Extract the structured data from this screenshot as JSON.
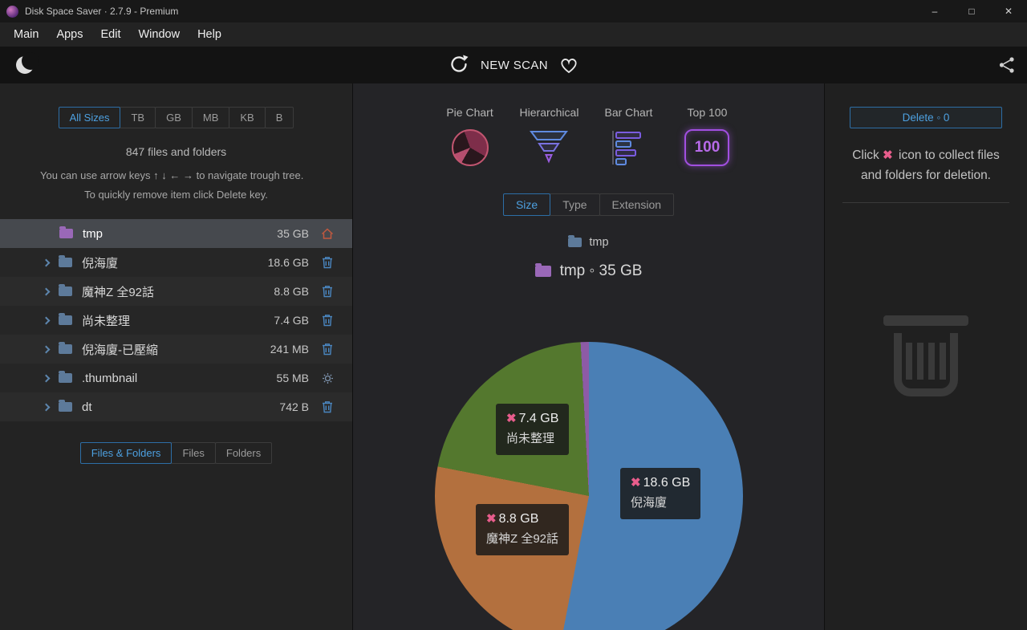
{
  "window": {
    "app_title": "Disk Space Saver · 2.7.9 - Premium",
    "controls": {
      "minimize": "–",
      "maximize": "□",
      "close": "✕"
    }
  },
  "menu": {
    "items": [
      "Main",
      "Apps",
      "Edit",
      "Window",
      "Help"
    ]
  },
  "toolbar": {
    "new_scan_label": "NEW SCAN"
  },
  "left_panel": {
    "size_tabs": [
      {
        "label": "All Sizes",
        "active": true
      },
      {
        "label": "TB",
        "active": false
      },
      {
        "label": "GB",
        "active": false
      },
      {
        "label": "MB",
        "active": false
      },
      {
        "label": "KB",
        "active": false
      },
      {
        "label": "B",
        "active": false
      }
    ],
    "summary": "847 files and folders",
    "hint_line1": "You can use arrow keys ↑ ↓ ← → to navigate trough tree.",
    "hint_line2": "To quickly remove item click Delete key.",
    "tree": [
      {
        "name": "tmp",
        "size": "35 GB",
        "action_icon": "home",
        "folder_color": "purple",
        "root": true,
        "selected": true
      },
      {
        "name": "倪海廈",
        "size": "18.6 GB",
        "action_icon": "trash",
        "folder_color": "blue"
      },
      {
        "name": "魔神Z 全92話",
        "size": "8.8 GB",
        "action_icon": "trash",
        "folder_color": "blue"
      },
      {
        "name": "尚未整理",
        "size": "7.4 GB",
        "action_icon": "trash",
        "folder_color": "blue"
      },
      {
        "name": "倪海廈-已壓縮",
        "size": "241 MB",
        "action_icon": "trash",
        "folder_color": "blue"
      },
      {
        "name": ".thumbnail",
        "size": "55 MB",
        "action_icon": "gear",
        "folder_color": "blue"
      },
      {
        "name": "dt",
        "size": "742 B",
        "action_icon": "trash",
        "folder_color": "blue"
      }
    ],
    "filter_tabs": [
      {
        "label": "Files & Folders",
        "active": true
      },
      {
        "label": "Files",
        "active": false
      },
      {
        "label": "Folders",
        "active": false
      }
    ]
  },
  "center_panel": {
    "views": [
      "Pie Chart",
      "Hierarchical",
      "Bar Chart",
      "Top 100"
    ],
    "top100_badge": "100",
    "tabs": [
      {
        "label": "Size",
        "active": true
      },
      {
        "label": "Type",
        "active": false
      },
      {
        "label": "Extension",
        "active": false
      }
    ],
    "breadcrumb": "tmp",
    "header": "tmp ◦ 35 GB",
    "x_glyph": "✖"
  },
  "right_panel": {
    "delete_button": "Delete ◦ 0",
    "x_glyph": "✖",
    "hint_before": "Click",
    "hint_after": "icon to collect files and folders for deletion."
  },
  "chart_data": {
    "type": "pie",
    "title": "tmp ◦ 35 GB",
    "total_label": "35 GB",
    "legend_position": "none",
    "slices": [
      {
        "label": "倪海廈",
        "display": "18.6 GB",
        "value_gb": 18.6,
        "color": "#4a7fb5"
      },
      {
        "label": "魔神Z 全92話",
        "display": "8.8 GB",
        "value_gb": 8.8,
        "color": "#b3703e"
      },
      {
        "label": "尚未整理",
        "display": "7.4 GB",
        "value_gb": 7.4,
        "color": "#54782e"
      },
      {
        "label": "other",
        "display": "",
        "value_gb": 0.3,
        "color": "#8d5ba6"
      }
    ]
  }
}
